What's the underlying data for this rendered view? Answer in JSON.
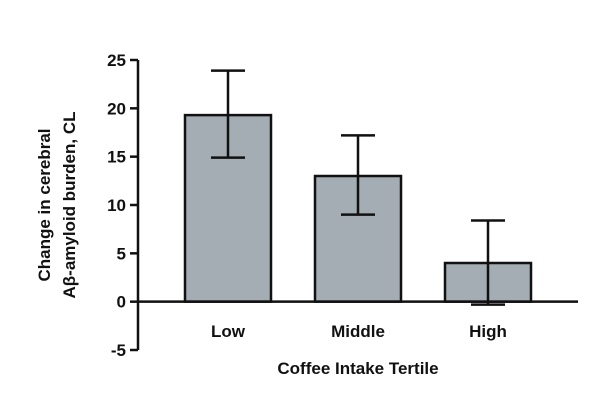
{
  "chart_data": {
    "type": "bar",
    "categories": [
      "Low",
      "Middle",
      "High"
    ],
    "values": [
      19.3,
      13.0,
      4.0
    ],
    "error_upper": [
      23.9,
      17.2,
      8.4
    ],
    "error_lower": [
      14.9,
      9.0,
      -0.3
    ],
    "xlabel": "Coffee Intake Tertile",
    "ylabel_lines": [
      "Change in cerebral",
      "Aβ-amyloid burden, CL"
    ],
    "ylim": [
      -5,
      25
    ],
    "yticks": [
      25,
      20,
      15,
      10,
      5,
      0,
      -5
    ],
    "grid": false,
    "colors": {
      "bar_fill": "#a4adb3",
      "bar_stroke": "#111111",
      "axis": "#111111"
    }
  }
}
